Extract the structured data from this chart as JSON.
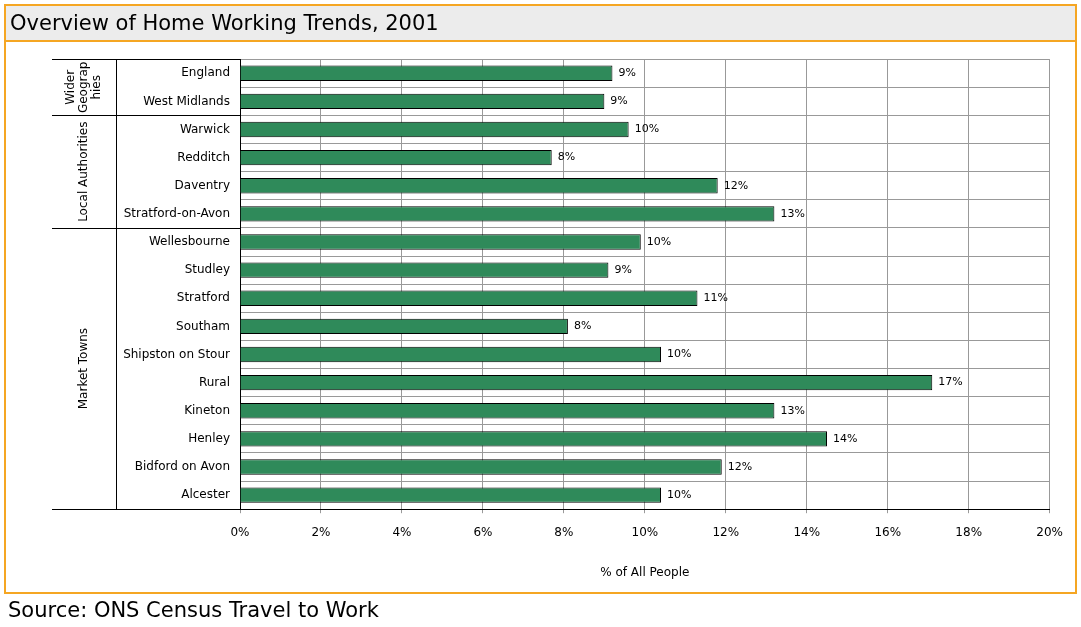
{
  "chart_data": {
    "type": "bar",
    "orientation": "horizontal",
    "title": "Overview of Home Working Trends, 2001",
    "xlabel": "% of All People",
    "categories": [
      "England",
      "West Midlands",
      "Warwick",
      "Redditch",
      "Daventry",
      "Stratford-on-Avon",
      "Wellesbourne",
      "Studley",
      "Stratford",
      "Southam",
      "Shipston on Stour",
      "Rural",
      "Kineton",
      "Henley",
      "Bidford on Avon",
      "Alcester"
    ],
    "values": [
      9.2,
      9.0,
      9.6,
      7.7,
      11.8,
      13.2,
      9.9,
      9.1,
      11.3,
      8.1,
      10.4,
      17.1,
      13.2,
      14.5,
      11.9,
      10.4
    ],
    "value_labels": [
      "9%",
      "9%",
      "10%",
      "8%",
      "12%",
      "13%",
      "10%",
      "9%",
      "11%",
      "8%",
      "10%",
      "17%",
      "13%",
      "14%",
      "12%",
      "10%"
    ],
    "color": "#2f8a5a",
    "xlim": [
      0,
      20
    ],
    "xticks": [
      {
        "value": 0,
        "label": "0%"
      },
      {
        "value": 2,
        "label": "2%"
      },
      {
        "value": 4,
        "label": "4%"
      },
      {
        "value": 6,
        "label": "6%"
      },
      {
        "value": 8,
        "label": "8%"
      },
      {
        "value": 10,
        "label": "10%"
      },
      {
        "value": 12,
        "label": "12%"
      },
      {
        "value": 14,
        "label": "14%"
      },
      {
        "value": 16,
        "label": "16%"
      },
      {
        "value": 18,
        "label": "18%"
      },
      {
        "value": 20,
        "label": "20%"
      }
    ],
    "grid": true,
    "legend": false,
    "annotations": [
      "Wider Geographies",
      "Local Authorities",
      "Market Towns",
      "Source: ONS Census Travel to Work"
    ]
  }
}
